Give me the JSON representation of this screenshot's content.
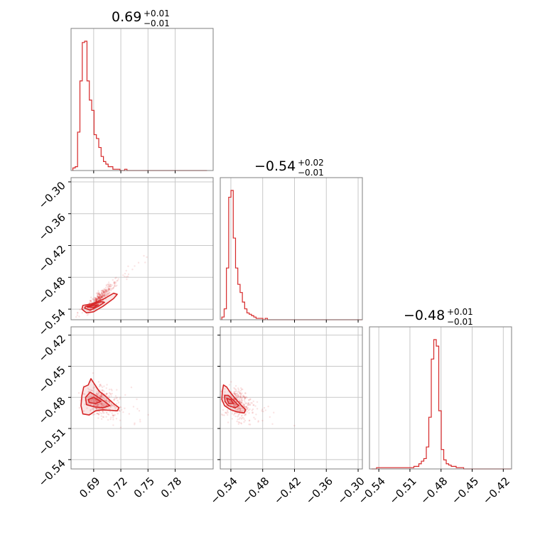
{
  "colors": {
    "series": "#d62728",
    "frame": "#7f7f7f",
    "grid": "#c8c8c8"
  },
  "titles": [
    {
      "median": "0.69",
      "plus": "+0.01",
      "minus": "−0.01"
    },
    {
      "median": "−0.54",
      "plus": "+0.02",
      "minus": "−0.01"
    },
    {
      "median": "−0.48",
      "plus": "+0.01",
      "minus": "−0.01"
    }
  ],
  "axes": {
    "x0": {
      "range": [
        0.665,
        0.822
      ],
      "ticks": [
        0.69,
        0.72,
        0.75,
        0.78
      ],
      "labels": [
        "0.69",
        "0.72",
        "0.75",
        "0.78"
      ]
    },
    "x1": {
      "range": [
        -0.56,
        -0.292
      ],
      "ticks": [
        -0.54,
        -0.48,
        -0.42,
        -0.36,
        -0.3
      ],
      "labels": [
        "−0.54",
        "−0.48",
        "−0.42",
        "−0.36",
        "−0.30"
      ]
    },
    "x2": {
      "range": [
        -0.549,
        -0.412
      ],
      "ticks": [
        -0.54,
        -0.51,
        -0.48,
        -0.45,
        -0.42
      ],
      "labels": [
        "−0.54",
        "−0.51",
        "−0.48",
        "−0.45",
        "−0.42"
      ]
    },
    "y1": {
      "range": [
        -0.56,
        -0.292
      ],
      "ticks": [
        -0.3,
        -0.36,
        -0.42,
        -0.48,
        -0.54
      ],
      "labels": [
        "−0.30",
        "−0.36",
        "−0.42",
        "−0.48",
        "−0.54"
      ]
    },
    "y2": {
      "range": [
        -0.549,
        -0.412
      ],
      "ticks": [
        -0.42,
        -0.45,
        -0.48,
        -0.51,
        -0.54
      ],
      "labels": [
        "−0.42",
        "−0.45",
        "−0.48",
        "−0.51",
        "−0.54"
      ]
    }
  },
  "chart_data": {
    "type": "corner",
    "parameters": 3,
    "histograms": [
      {
        "x_start": 0.667,
        "bin_width": 0.0026,
        "counts": [
          2,
          3,
          30,
          70,
          100,
          101,
          70,
          55,
          47,
          28,
          25,
          18,
          11,
          7,
          5,
          3,
          3,
          1,
          1,
          1,
          0,
          0,
          1,
          0,
          0,
          0,
          0,
          0,
          0,
          0,
          0,
          0,
          0,
          0,
          0,
          0,
          0,
          0,
          0,
          0,
          0,
          0,
          0,
          0,
          0,
          0,
          0,
          0,
          0,
          0,
          0,
          0,
          0,
          0,
          0,
          0,
          0
        ]
      },
      {
        "x_start": -0.557,
        "bin_width": 0.0043,
        "counts": [
          2,
          8,
          38,
          90,
          95,
          60,
          38,
          26,
          20,
          13,
          8,
          5,
          4,
          3,
          2,
          1,
          1,
          1,
          0,
          1,
          0,
          0,
          0,
          0,
          0,
          0,
          0,
          0,
          0,
          0,
          0,
          0,
          0,
          0,
          0,
          0,
          0,
          0,
          0,
          0,
          0,
          0,
          0,
          0,
          0,
          0,
          0,
          0,
          0,
          0,
          0,
          0,
          0,
          0,
          0,
          0,
          0,
          0,
          0,
          0,
          0,
          0,
          0
        ]
      },
      {
        "x_start": -0.547,
        "bin_width": 0.0024,
        "counts": [
          0,
          0,
          1,
          1,
          1,
          1,
          1,
          1,
          1,
          1,
          1,
          1,
          1,
          1,
          1,
          1,
          1,
          2,
          2,
          4,
          6,
          8,
          17,
          40,
          85,
          100,
          95,
          45,
          15,
          7,
          4,
          3,
          2,
          2,
          1,
          1,
          1,
          0,
          0,
          0,
          0,
          0,
          0,
          0,
          0,
          0,
          0,
          0,
          0,
          0,
          0,
          0,
          0,
          0,
          0,
          0
        ]
      }
    ],
    "scatter_centers": {
      "panel_1_0": {
        "x": 0.692,
        "y": -0.525,
        "slope": 1.5
      },
      "panel_2_0": {
        "x": 0.693,
        "y": -0.483,
        "slope": -0.25
      },
      "panel_2_1": {
        "x": -0.535,
        "y": -0.485,
        "slope": -0.2
      }
    },
    "contours": {
      "panel_1_0": [
        [
          [
            0.677,
            -0.54
          ],
          [
            0.682,
            -0.547
          ],
          [
            0.69,
            -0.545
          ],
          [
            0.7,
            -0.535
          ],
          [
            0.712,
            -0.52
          ],
          [
            0.716,
            -0.512
          ],
          [
            0.712,
            -0.51
          ],
          [
            0.7,
            -0.522
          ],
          [
            0.688,
            -0.53
          ],
          [
            0.678,
            -0.533
          ]
        ],
        [
          [
            0.68,
            -0.538
          ],
          [
            0.686,
            -0.542
          ],
          [
            0.695,
            -0.535
          ],
          [
            0.702,
            -0.527
          ],
          [
            0.698,
            -0.526
          ],
          [
            0.688,
            -0.532
          ],
          [
            0.681,
            -0.535
          ]
        ],
        [
          [
            0.683,
            -0.536
          ],
          [
            0.69,
            -0.537
          ],
          [
            0.695,
            -0.532
          ],
          [
            0.689,
            -0.533
          ]
        ]
      ],
      "panel_2_0": [
        [
          [
            0.677,
            -0.478
          ],
          [
            0.679,
            -0.47
          ],
          [
            0.684,
            -0.468
          ],
          [
            0.687,
            -0.462
          ],
          [
            0.69,
            -0.466
          ],
          [
            0.696,
            -0.474
          ],
          [
            0.702,
            -0.478
          ],
          [
            0.712,
            -0.486
          ],
          [
            0.718,
            -0.49
          ],
          [
            0.716,
            -0.493
          ],
          [
            0.7,
            -0.492
          ],
          [
            0.692,
            -0.493
          ],
          [
            0.685,
            -0.497
          ],
          [
            0.678,
            -0.496
          ],
          [
            0.676,
            -0.488
          ]
        ],
        [
          [
            0.681,
            -0.48
          ],
          [
            0.686,
            -0.475
          ],
          [
            0.692,
            -0.478
          ],
          [
            0.702,
            -0.484
          ],
          [
            0.708,
            -0.488
          ],
          [
            0.7,
            -0.49
          ],
          [
            0.69,
            -0.489
          ],
          [
            0.682,
            -0.487
          ]
        ],
        [
          [
            0.684,
            -0.482
          ],
          [
            0.69,
            -0.48
          ],
          [
            0.698,
            -0.484
          ],
          [
            0.692,
            -0.486
          ],
          [
            0.685,
            -0.485
          ]
        ]
      ],
      "panel_2_1": [
        [
          [
            -0.556,
            -0.474
          ],
          [
            -0.554,
            -0.468
          ],
          [
            -0.548,
            -0.47
          ],
          [
            -0.54,
            -0.476
          ],
          [
            -0.53,
            -0.482
          ],
          [
            -0.52,
            -0.488
          ],
          [
            -0.512,
            -0.492
          ],
          [
            -0.515,
            -0.495
          ],
          [
            -0.528,
            -0.494
          ],
          [
            -0.54,
            -0.492
          ],
          [
            -0.552,
            -0.488
          ],
          [
            -0.557,
            -0.482
          ]
        ],
        [
          [
            -0.552,
            -0.478
          ],
          [
            -0.545,
            -0.478
          ],
          [
            -0.535,
            -0.483
          ],
          [
            -0.525,
            -0.488
          ],
          [
            -0.532,
            -0.49
          ],
          [
            -0.545,
            -0.488
          ],
          [
            -0.551,
            -0.484
          ]
        ],
        [
          [
            -0.548,
            -0.481
          ],
          [
            -0.54,
            -0.482
          ],
          [
            -0.535,
            -0.486
          ],
          [
            -0.544,
            -0.486
          ]
        ]
      ]
    }
  }
}
